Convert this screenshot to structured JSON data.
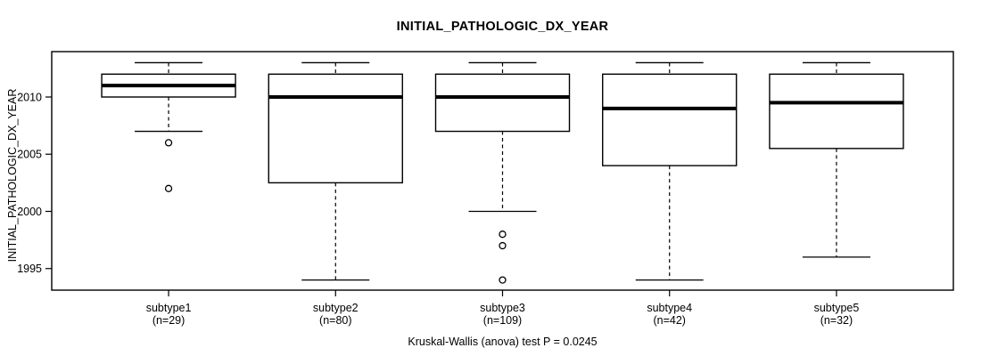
{
  "title": "INITIAL_PATHOLOGIC_DX_YEAR",
  "y_axis": {
    "label": "INITIAL_PATHOLOGIC_DX_YEAR",
    "ticks": [
      1995,
      2000,
      2005,
      2010
    ]
  },
  "caption": "Kruskal-Wallis (anova) test P = 0.0245",
  "colors": {
    "line": "#000000",
    "median": "#000000",
    "box_fill": "#ffffff",
    "background": "#ffffff",
    "text": "#000000"
  },
  "chart_data": {
    "type": "boxplot",
    "title": "INITIAL_PATHOLOGIC_DX_YEAR",
    "xlabel": "",
    "ylabel": "INITIAL_PATHOLOGIC_DX_YEAR",
    "ylim": [
      1993.1,
      2014.0
    ],
    "yticks": [
      1995,
      2000,
      2005,
      2010
    ],
    "grid": false,
    "legend": "none",
    "caption": "Kruskal-Wallis (anova) test P = 0.0245",
    "categories": [
      "subtype1",
      "subtype2",
      "subtype3",
      "subtype4",
      "subtype5"
    ],
    "groups": [
      {
        "label": "subtype1",
        "sublabel": "(n=29)",
        "n": 29,
        "whisker_low": 2007,
        "q1": 2010,
        "median": 2011,
        "q3": 2012,
        "whisker_high": 2013,
        "outliers": [
          2006,
          2002
        ]
      },
      {
        "label": "subtype2",
        "sublabel": "(n=80)",
        "n": 80,
        "whisker_low": 1994,
        "q1": 2002.5,
        "median": 2010,
        "q3": 2012,
        "whisker_high": 2013,
        "outliers": []
      },
      {
        "label": "subtype3",
        "sublabel": "(n=109)",
        "n": 109,
        "whisker_low": 2000,
        "q1": 2007,
        "median": 2010,
        "q3": 2012,
        "whisker_high": 2013,
        "outliers": [
          1998,
          1997,
          1994
        ]
      },
      {
        "label": "subtype4",
        "sublabel": "(n=42)",
        "n": 42,
        "whisker_low": 1994,
        "q1": 2004,
        "median": 2009,
        "q3": 2012,
        "whisker_high": 2013,
        "outliers": []
      },
      {
        "label": "subtype5",
        "sublabel": "(n=32)",
        "n": 32,
        "whisker_low": 1996,
        "q1": 2005.5,
        "median": 2009.5,
        "q3": 2012,
        "whisker_high": 2013,
        "outliers": []
      }
    ]
  }
}
